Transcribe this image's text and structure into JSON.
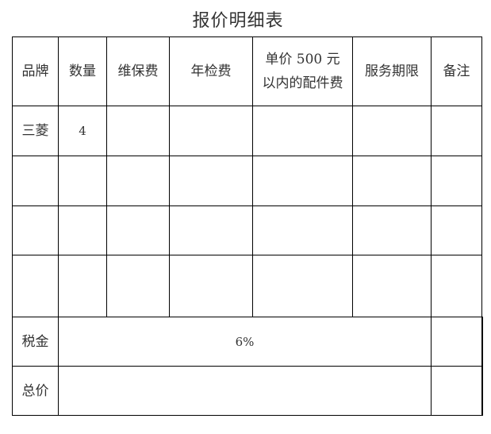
{
  "title": "报价明细表",
  "headers": [
    "品牌",
    "数量",
    "维保费",
    "年检费",
    "单价 500 元\n以内的配件费",
    "服务期限",
    "备注"
  ],
  "header_parts_line1": "单价 500 元",
  "header_parts_line2": "以内的配件费",
  "rows": [
    {
      "brand": "三菱",
      "quantity": "4"
    }
  ],
  "tax": {
    "label": "税金",
    "value": "6%"
  },
  "total": {
    "label": "总价"
  }
}
